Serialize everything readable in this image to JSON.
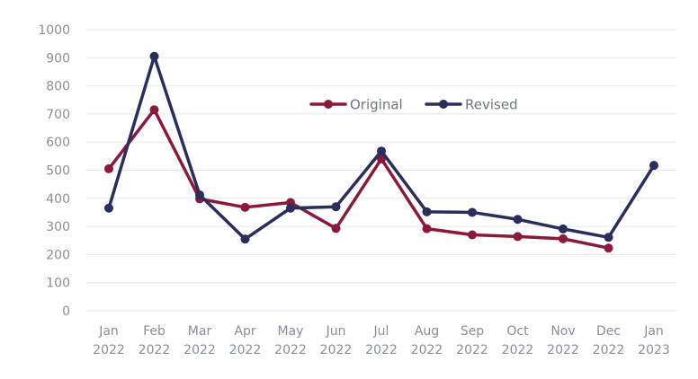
{
  "chart_data": {
    "type": "line",
    "categories": [
      [
        "Jan",
        "2022"
      ],
      [
        "Feb",
        "2022"
      ],
      [
        "Mar",
        "2022"
      ],
      [
        "Apr",
        "2022"
      ],
      [
        "May",
        "2022"
      ],
      [
        "Jun",
        "2022"
      ],
      [
        "Jul",
        "2022"
      ],
      [
        "Aug",
        "2022"
      ],
      [
        "Sep",
        "2022"
      ],
      [
        "Oct",
        "2022"
      ],
      [
        "Nov",
        "2022"
      ],
      [
        "Dec",
        "2022"
      ],
      [
        "Jan",
        "2023"
      ]
    ],
    "series": [
      {
        "name": "Original",
        "color": "#8b1a3a",
        "values": [
          505,
          715,
          398,
          368,
          385,
          293,
          540,
          292,
          270,
          264,
          256,
          223,
          null
        ]
      },
      {
        "name": "Revised",
        "color": "#2b2d5c",
        "values": [
          365,
          905,
          412,
          255,
          365,
          370,
          568,
          352,
          350,
          325,
          291,
          261,
          517
        ]
      }
    ],
    "ylim": [
      0,
      1000
    ],
    "yticks": [
      0,
      100,
      200,
      300,
      400,
      500,
      600,
      700,
      800,
      900,
      1000
    ],
    "grid": true,
    "legend_position": "top-center"
  }
}
